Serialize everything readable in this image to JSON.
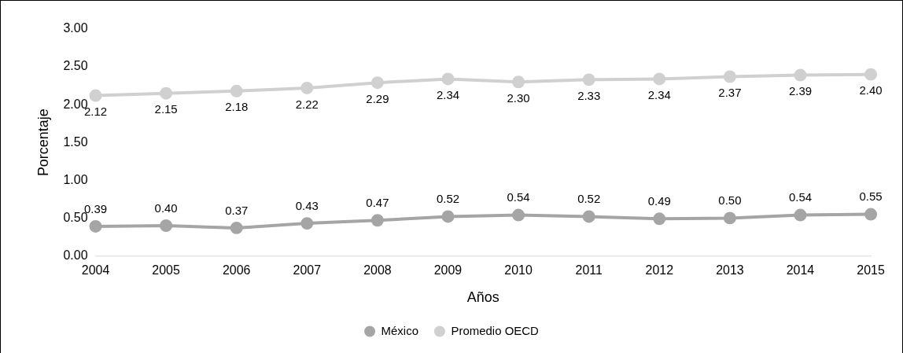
{
  "chart_data": {
    "type": "line",
    "xlabel": "Años",
    "ylabel": "Porcentaje",
    "categories": [
      "2004",
      "2005",
      "2006",
      "2007",
      "2008",
      "2009",
      "2010",
      "2011",
      "2012",
      "2013",
      "2014",
      "2015"
    ],
    "series": [
      {
        "name": "México",
        "color": "#a5a5a5",
        "values": [
          0.39,
          0.4,
          0.37,
          0.43,
          0.47,
          0.52,
          0.54,
          0.52,
          0.49,
          0.5,
          0.54,
          0.55
        ],
        "value_labels": [
          "0.39",
          "0.40",
          "0.37",
          "0.43",
          "0.47",
          "0.52",
          "0.54",
          "0.52",
          "0.49",
          "0.50",
          "0.54",
          "0.55"
        ]
      },
      {
        "name": "Promedio OECD",
        "color": "#d0d0d0",
        "values": [
          2.12,
          2.15,
          2.18,
          2.22,
          2.29,
          2.34,
          2.3,
          2.33,
          2.34,
          2.37,
          2.39,
          2.4
        ],
        "value_labels": [
          "2.12",
          "2.15",
          "2.18",
          "2.22",
          "2.29",
          "2.34",
          "2.30",
          "2.33",
          "2.34",
          "2.37",
          "2.39",
          "2.40"
        ]
      }
    ],
    "ylim": [
      0,
      3
    ],
    "yticks": [
      {
        "value": 0,
        "label": "0.00"
      },
      {
        "value": 0.5,
        "label": "0.50"
      },
      {
        "value": 1,
        "label": "1.00"
      },
      {
        "value": 1.5,
        "label": "1.50"
      },
      {
        "value": 2,
        "label": "2.00"
      },
      {
        "value": 2.5,
        "label": "2.50"
      },
      {
        "value": 3,
        "label": "3.00"
      }
    ],
    "grid": false,
    "legend": "bottom",
    "marker": "circle",
    "line_style": "solid"
  }
}
